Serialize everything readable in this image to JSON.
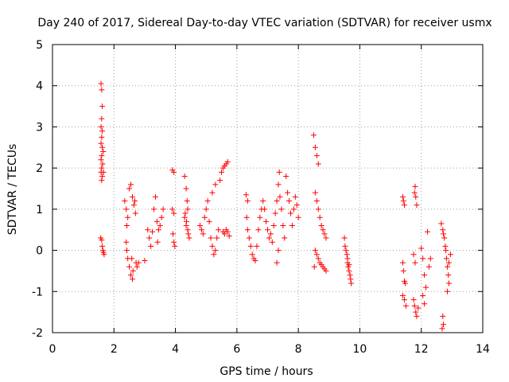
{
  "chart_data": {
    "type": "scatter",
    "title": "Day 240 of 2017, Sidereal Day-to-day VTEC variation (SDTVAR) for receiver usmx",
    "xlabel": "GPS time / hours",
    "ylabel": "SDTVAR / TECUs",
    "xlim": [
      0,
      14
    ],
    "ylim": [
      -2,
      5
    ],
    "xticks": [
      0,
      2,
      4,
      6,
      8,
      10,
      12,
      14
    ],
    "yticks": [
      -2,
      -1,
      0,
      1,
      2,
      3,
      4,
      5
    ],
    "xtick_labels": [
      "0",
      "2",
      "4",
      "6",
      "8",
      "10",
      "12",
      "14"
    ],
    "ytick_labels": [
      "-2",
      "-1",
      "0",
      "1",
      "2",
      "3",
      "4",
      "5"
    ],
    "grid": true,
    "legend": "none",
    "marker": "+",
    "color": "#ff0000",
    "series": [
      {
        "name": "SDTVAR",
        "points": [
          [
            1.58,
            4.05
          ],
          [
            1.6,
            3.9
          ],
          [
            1.62,
            3.5
          ],
          [
            1.6,
            3.2
          ],
          [
            1.58,
            3.0
          ],
          [
            1.62,
            2.9
          ],
          [
            1.6,
            2.75
          ],
          [
            1.58,
            2.6
          ],
          [
            1.62,
            2.5
          ],
          [
            1.6,
            2.3
          ],
          [
            1.58,
            2.2
          ],
          [
            1.63,
            2.1
          ],
          [
            1.6,
            2.0
          ],
          [
            1.58,
            1.9
          ],
          [
            1.62,
            1.8
          ],
          [
            1.6,
            1.7
          ],
          [
            1.65,
            2.4
          ],
          [
            1.66,
            1.9
          ],
          [
            1.57,
            0.3
          ],
          [
            1.6,
            0.25
          ],
          [
            1.62,
            0.1
          ],
          [
            1.64,
            0.0
          ],
          [
            1.66,
            -0.05
          ],
          [
            1.68,
            -0.1
          ],
          [
            2.35,
            1.2
          ],
          [
            2.4,
            1.0
          ],
          [
            2.45,
            0.8
          ],
          [
            2.42,
            0.6
          ],
          [
            2.4,
            0.2
          ],
          [
            2.42,
            0.0
          ],
          [
            2.45,
            -0.2
          ],
          [
            2.5,
            -0.4
          ],
          [
            2.55,
            -0.6
          ],
          [
            2.6,
            -0.7
          ],
          [
            2.5,
            1.5
          ],
          [
            2.55,
            1.6
          ],
          [
            2.6,
            1.3
          ],
          [
            2.65,
            1.1
          ],
          [
            2.7,
            0.9
          ],
          [
            2.68,
            1.2
          ],
          [
            2.72,
            -0.3
          ],
          [
            2.75,
            -0.4
          ],
          [
            2.8,
            -0.3
          ],
          [
            2.62,
            -0.5
          ],
          [
            2.58,
            -0.2
          ],
          [
            3.0,
            -0.25
          ],
          [
            3.1,
            0.5
          ],
          [
            3.15,
            0.3
          ],
          [
            3.2,
            0.1
          ],
          [
            3.25,
            0.45
          ],
          [
            3.3,
            1.0
          ],
          [
            3.35,
            1.3
          ],
          [
            3.4,
            0.7
          ],
          [
            3.45,
            0.5
          ],
          [
            3.5,
            0.6
          ],
          [
            3.55,
            0.8
          ],
          [
            3.6,
            1.0
          ],
          [
            3.42,
            0.2
          ],
          [
            3.9,
            1.95
          ],
          [
            3.95,
            1.9
          ],
          [
            3.9,
            1.0
          ],
          [
            3.95,
            0.9
          ],
          [
            3.92,
            0.4
          ],
          [
            3.95,
            0.2
          ],
          [
            3.98,
            0.1
          ],
          [
            4.3,
            1.8
          ],
          [
            4.35,
            1.5
          ],
          [
            4.38,
            1.2
          ],
          [
            4.4,
            1.0
          ],
          [
            4.3,
            0.8
          ],
          [
            4.35,
            0.6
          ],
          [
            4.4,
            0.5
          ],
          [
            4.42,
            0.4
          ],
          [
            4.45,
            0.3
          ],
          [
            4.32,
            0.9
          ],
          [
            4.36,
            0.7
          ],
          [
            4.8,
            0.6
          ],
          [
            4.85,
            0.5
          ],
          [
            4.9,
            0.4
          ],
          [
            4.95,
            0.8
          ],
          [
            5.0,
            1.0
          ],
          [
            5.05,
            1.2
          ],
          [
            5.1,
            0.7
          ],
          [
            5.15,
            0.3
          ],
          [
            5.2,
            0.1
          ],
          [
            5.25,
            -0.1
          ],
          [
            5.3,
            0.0
          ],
          [
            5.35,
            0.3
          ],
          [
            5.4,
            0.5
          ],
          [
            5.45,
            1.7
          ],
          [
            5.5,
            1.9
          ],
          [
            5.55,
            2.0
          ],
          [
            5.6,
            2.05
          ],
          [
            5.65,
            2.1
          ],
          [
            5.7,
            2.15
          ],
          [
            5.55,
            0.45
          ],
          [
            5.6,
            0.4
          ],
          [
            5.65,
            0.5
          ],
          [
            5.7,
            0.45
          ],
          [
            5.75,
            0.35
          ],
          [
            5.2,
            1.4
          ],
          [
            5.3,
            1.6
          ],
          [
            6.3,
            1.35
          ],
          [
            6.35,
            1.2
          ],
          [
            6.32,
            0.8
          ],
          [
            6.35,
            0.5
          ],
          [
            6.4,
            0.3
          ],
          [
            6.45,
            0.1
          ],
          [
            6.5,
            -0.1
          ],
          [
            6.55,
            -0.2
          ],
          [
            6.6,
            -0.25
          ],
          [
            6.65,
            0.1
          ],
          [
            6.7,
            0.5
          ],
          [
            6.75,
            0.8
          ],
          [
            6.8,
            1.0
          ],
          [
            6.85,
            1.2
          ],
          [
            6.9,
            1.0
          ],
          [
            6.95,
            0.7
          ],
          [
            7.0,
            0.5
          ],
          [
            7.05,
            0.3
          ],
          [
            7.1,
            0.4
          ],
          [
            7.15,
            0.2
          ],
          [
            7.2,
            0.6
          ],
          [
            7.25,
            0.9
          ],
          [
            7.3,
            1.2
          ],
          [
            7.35,
            1.6
          ],
          [
            7.38,
            1.9
          ],
          [
            7.4,
            1.3
          ],
          [
            7.45,
            1.0
          ],
          [
            7.5,
            0.6
          ],
          [
            7.55,
            0.3
          ],
          [
            7.6,
            1.8
          ],
          [
            7.65,
            1.4
          ],
          [
            7.7,
            1.2
          ],
          [
            7.75,
            0.9
          ],
          [
            7.8,
            0.6
          ],
          [
            7.85,
            1.0
          ],
          [
            7.9,
            1.3
          ],
          [
            7.95,
            1.1
          ],
          [
            8.0,
            0.8
          ],
          [
            7.3,
            -0.3
          ],
          [
            7.35,
            0.0
          ],
          [
            8.5,
            2.8
          ],
          [
            8.55,
            2.5
          ],
          [
            8.6,
            2.3
          ],
          [
            8.65,
            2.1
          ],
          [
            8.55,
            1.4
          ],
          [
            8.6,
            1.2
          ],
          [
            8.65,
            1.0
          ],
          [
            8.7,
            0.8
          ],
          [
            8.75,
            0.6
          ],
          [
            8.8,
            0.5
          ],
          [
            8.85,
            0.4
          ],
          [
            8.9,
            0.3
          ],
          [
            8.55,
            0.0
          ],
          [
            8.6,
            -0.1
          ],
          [
            8.65,
            -0.2
          ],
          [
            8.7,
            -0.3
          ],
          [
            8.75,
            -0.35
          ],
          [
            8.8,
            -0.4
          ],
          [
            8.85,
            -0.45
          ],
          [
            8.9,
            -0.5
          ],
          [
            8.52,
            -0.4
          ],
          [
            9.5,
            0.3
          ],
          [
            9.52,
            0.1
          ],
          [
            9.55,
            0.0
          ],
          [
            9.58,
            -0.1
          ],
          [
            9.6,
            -0.3
          ],
          [
            9.62,
            -0.4
          ],
          [
            9.65,
            -0.5
          ],
          [
            9.68,
            -0.6
          ],
          [
            9.7,
            -0.7
          ],
          [
            9.72,
            -0.8
          ],
          [
            9.6,
            -0.2
          ],
          [
            9.65,
            -0.35
          ],
          [
            11.4,
            1.3
          ],
          [
            11.42,
            1.2
          ],
          [
            11.45,
            1.1
          ],
          [
            11.4,
            -0.3
          ],
          [
            11.42,
            -0.5
          ],
          [
            11.45,
            -0.75
          ],
          [
            11.48,
            -0.8
          ],
          [
            11.4,
            -1.1
          ],
          [
            11.45,
            -1.2
          ],
          [
            11.5,
            -1.35
          ],
          [
            11.78,
            1.4
          ],
          [
            11.8,
            1.55
          ],
          [
            11.82,
            1.3
          ],
          [
            11.85,
            1.1
          ],
          [
            11.75,
            -0.1
          ],
          [
            11.8,
            -0.3
          ],
          [
            11.75,
            -1.2
          ],
          [
            11.78,
            -1.35
          ],
          [
            11.82,
            -1.5
          ],
          [
            11.85,
            -1.6
          ],
          [
            11.9,
            -1.4
          ],
          [
            12.0,
            0.05
          ],
          [
            12.05,
            -0.2
          ],
          [
            12.1,
            -0.6
          ],
          [
            12.15,
            -0.9
          ],
          [
            12.05,
            -1.1
          ],
          [
            12.1,
            -1.3
          ],
          [
            12.2,
            0.45
          ],
          [
            12.25,
            -0.4
          ],
          [
            12.3,
            -0.2
          ],
          [
            12.65,
            0.65
          ],
          [
            12.7,
            0.5
          ],
          [
            12.72,
            0.4
          ],
          [
            12.75,
            0.3
          ],
          [
            12.78,
            0.1
          ],
          [
            12.8,
            0.0
          ],
          [
            12.82,
            -0.2
          ],
          [
            12.85,
            -0.4
          ],
          [
            12.88,
            -0.6
          ],
          [
            12.9,
            -0.8
          ],
          [
            12.7,
            -1.6
          ],
          [
            12.72,
            -1.8
          ],
          [
            12.68,
            -1.9
          ],
          [
            12.85,
            -1.0
          ],
          [
            12.9,
            -0.3
          ],
          [
            12.95,
            -0.1
          ]
        ]
      }
    ]
  }
}
